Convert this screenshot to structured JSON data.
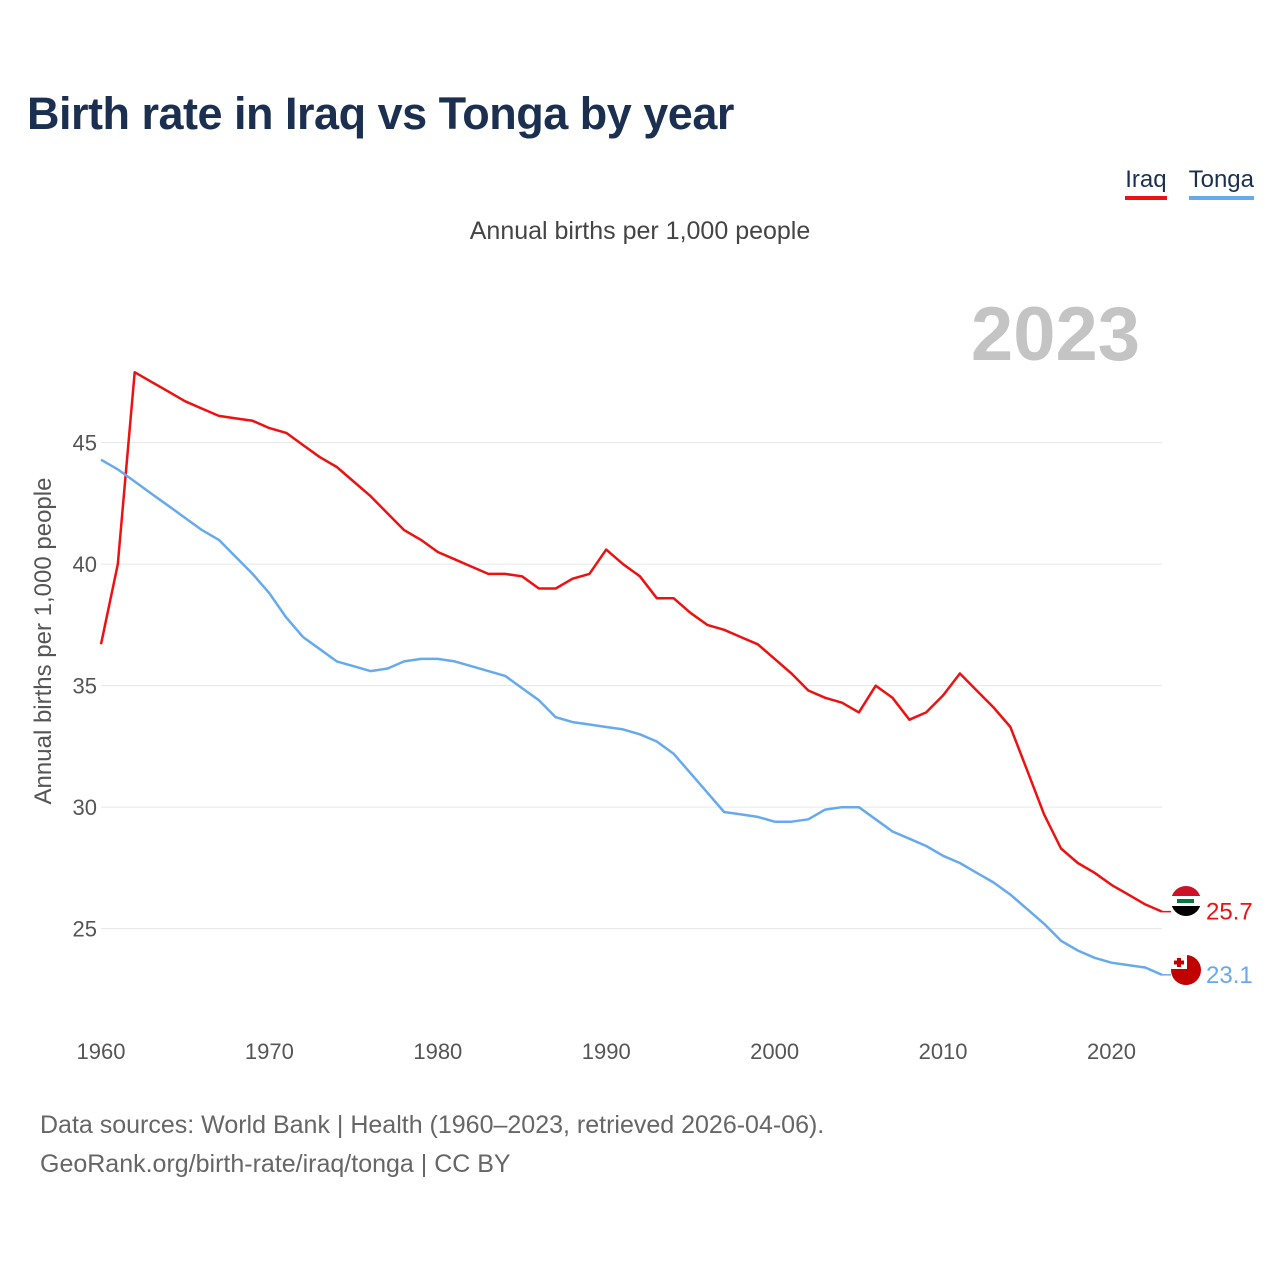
{
  "title": "Birth rate in Iraq vs Tonga by year",
  "subtitle": "Annual births per 1,000 people",
  "legend": [
    {
      "name": "Iraq",
      "color": "#ee1111"
    },
    {
      "name": "Tonga",
      "color": "#66aaee"
    }
  ],
  "footer": {
    "line1": "Data sources: World Bank | Health (1960–2023, retrieved 2026-04-06).",
    "line2": "GeoRank.org/birth-rate/iraq/tonga | CC BY"
  },
  "chart_data": {
    "type": "line",
    "title": "Birth rate in Iraq vs Tonga by year",
    "ylabel": "Annual births per 1,000 people",
    "xlabel": "",
    "year_label": "2023",
    "xlim": [
      1960,
      2023
    ],
    "ylim": [
      21.2,
      50.5
    ],
    "x_ticks": [
      1960,
      1970,
      1980,
      1990,
      2000,
      2010,
      2020
    ],
    "y_ticks": [
      25,
      30,
      35,
      40,
      45
    ],
    "grid": true,
    "x": [
      1960,
      1961,
      1962,
      1963,
      1964,
      1965,
      1966,
      1967,
      1968,
      1969,
      1970,
      1971,
      1972,
      1973,
      1974,
      1975,
      1976,
      1977,
      1978,
      1979,
      1980,
      1981,
      1982,
      1983,
      1984,
      1985,
      1986,
      1987,
      1988,
      1989,
      1990,
      1991,
      1992,
      1993,
      1994,
      1995,
      1996,
      1997,
      1998,
      1999,
      2000,
      2001,
      2002,
      2003,
      2004,
      2005,
      2006,
      2007,
      2008,
      2009,
      2010,
      2011,
      2012,
      2013,
      2014,
      2015,
      2016,
      2017,
      2018,
      2019,
      2020,
      2021,
      2022,
      2023
    ],
    "series": [
      {
        "name": "Iraq",
        "color": "#ee1111",
        "end_label": "25.7",
        "values": [
          36.7,
          40.0,
          47.9,
          47.5,
          47.1,
          46.7,
          46.4,
          46.1,
          46.0,
          45.9,
          45.6,
          45.4,
          44.9,
          44.4,
          44.0,
          43.4,
          42.8,
          42.1,
          41.4,
          41.0,
          40.5,
          40.2,
          39.9,
          39.6,
          39.6,
          39.5,
          39.0,
          39.0,
          39.4,
          39.6,
          40.6,
          40.0,
          39.5,
          38.6,
          38.6,
          38.0,
          37.5,
          37.3,
          37.0,
          36.7,
          36.1,
          35.5,
          34.8,
          34.5,
          34.3,
          33.9,
          35.0,
          34.5,
          33.6,
          33.9,
          34.6,
          35.5,
          34.8,
          34.1,
          33.3,
          31.5,
          29.7,
          28.3,
          27.7,
          27.3,
          26.8,
          26.4,
          26.0,
          25.7
        ]
      },
      {
        "name": "Tonga",
        "color": "#66aaee",
        "end_label": "23.1",
        "values": [
          44.3,
          43.9,
          43.4,
          42.9,
          42.4,
          41.9,
          41.4,
          41.0,
          40.3,
          39.6,
          38.8,
          37.8,
          37.0,
          36.5,
          36.0,
          35.8,
          35.6,
          35.7,
          36.0,
          36.1,
          36.1,
          36.0,
          35.8,
          35.6,
          35.4,
          34.9,
          34.4,
          33.7,
          33.5,
          33.4,
          33.3,
          33.2,
          33.0,
          32.7,
          32.2,
          31.4,
          30.6,
          29.8,
          29.7,
          29.6,
          29.4,
          29.4,
          29.5,
          29.9,
          30.0,
          30.0,
          29.5,
          29.0,
          28.7,
          28.4,
          28.0,
          27.7,
          27.3,
          26.9,
          26.4,
          25.8,
          25.2,
          24.5,
          24.1,
          23.8,
          23.6,
          23.5,
          23.4,
          23.1
        ]
      }
    ]
  }
}
